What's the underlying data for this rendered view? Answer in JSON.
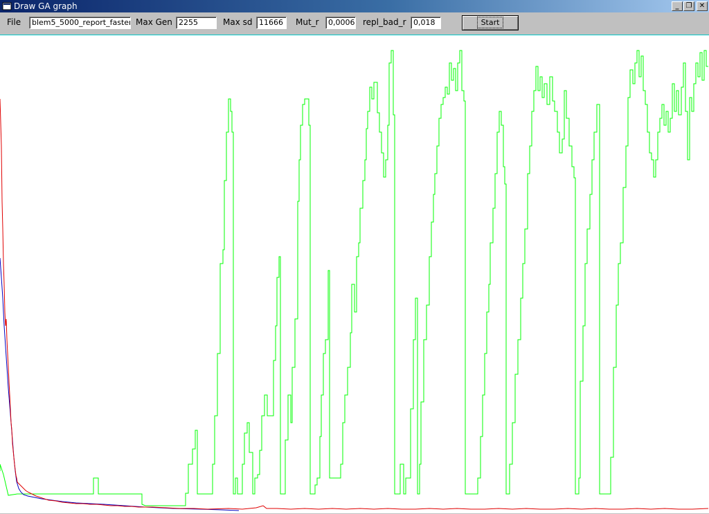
{
  "window": {
    "title": "Draw GA graph",
    "icon": "app-icon",
    "controls": {
      "minimize": "_",
      "maximize": "❐",
      "close": "✕"
    }
  },
  "toolbar": {
    "file_label": "File",
    "file_value": "blem5_5000_report_faster.",
    "max_gen_label": "Max Gen",
    "max_gen_value": "2255",
    "max_sd_label": "Max sd",
    "max_sd_value": "11666",
    "mut_r_label": "Mut_r",
    "mut_r_value": "0,0006",
    "repl_bad_r_label": "repl_bad_r",
    "repl_bad_r_value": "0,018",
    "start_label": "Start"
  },
  "colors": {
    "series_green": "#00ff00",
    "series_red": "#e00000",
    "series_blue": "#0000c0",
    "canvas_bg": "#ffffff",
    "canvas_border": "#00c8c8"
  }
}
